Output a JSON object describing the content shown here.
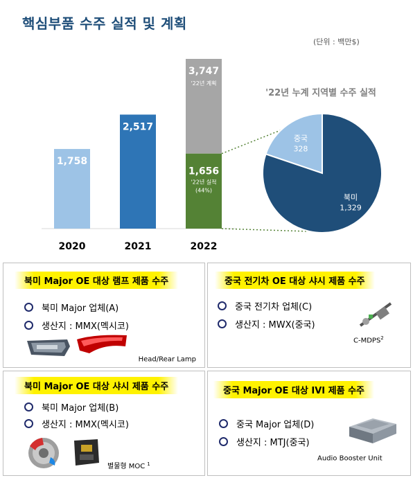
{
  "header": {
    "title": "핵심부품 수주 실적 및 계획",
    "unit": "(단위 : 백만$)"
  },
  "chart_data": [
    {
      "type": "bar",
      "categories": [
        "2020",
        "2021",
        "2022"
      ],
      "stacked_2022": [
        {
          "name": "'22년 실적",
          "value": 1656,
          "value_label": "1,656",
          "pct_label": "(44%)",
          "color": "#548235"
        },
        {
          "name": "'22년 계획",
          "value": 3747,
          "value_label": "3,747",
          "color": "#a6a6a6"
        }
      ],
      "values": [
        1758,
        2517,
        3747
      ],
      "value_labels": [
        "1,758",
        "2,517",
        "3,747"
      ],
      "bar_colors": [
        "#9dc3e6",
        "#2e75b6",
        "#a6a6a6"
      ]
    },
    {
      "type": "pie",
      "title": "'22년 누계 지역별 수주 실적",
      "slices": [
        {
          "name": "북미",
          "value": 1329,
          "value_label": "1,329",
          "color": "#1f4e79"
        },
        {
          "name": "중국",
          "value": 328,
          "value_label": "328",
          "color": "#9dc3e6"
        }
      ]
    }
  ],
  "cards": [
    {
      "title": "북미 Major OE 대상 램프 제품 수주",
      "items": [
        "북미 Major 업체(A)",
        "생산지 : MMX(멕시코)"
      ],
      "caption": "Head/Rear Lamp",
      "caption_sup": ""
    },
    {
      "title": "중국 전기차 OE 대상 샤시 제품 수주",
      "items": [
        "중국 전기차 업체(C)",
        "생산지 : MWX(중국)"
      ],
      "caption": "C-MDPS",
      "caption_sup": "2"
    },
    {
      "title": "북미 Major OE 대상 샤시 제품 수주",
      "items": [
        "북미 Major 업체(B)",
        "생산지 : MMX(멕시코)"
      ],
      "caption": "별물형 MOC",
      "caption_sup": "1"
    },
    {
      "title": "중국 Major OE 대상 IVI 제품 수주",
      "items": [
        "중국 Major 업체(D)",
        "생산지 : MTJ(중국)"
      ],
      "caption": "Audio Booster Unit",
      "caption_sup": ""
    }
  ]
}
